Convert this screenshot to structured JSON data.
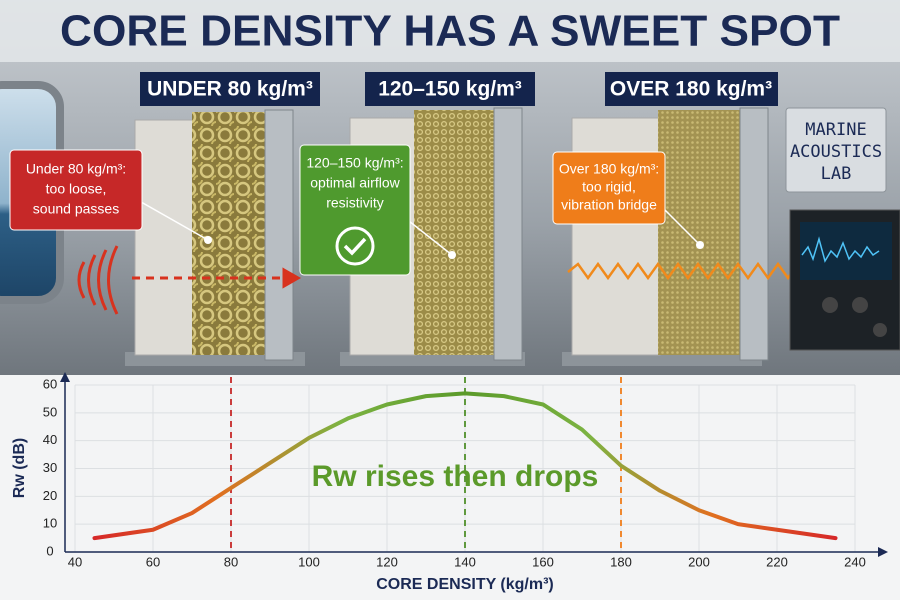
{
  "header": {
    "title": "CORE DENSITY HAS A SWEET SPOT"
  },
  "panels": [
    {
      "label": "UNDER 80 kg/m³",
      "callout": [
        "Under 80 kg/m³:",
        "too loose,",
        "sound passes"
      ]
    },
    {
      "label": "120–150 kg/m³",
      "callout": [
        "120–150 kg/m³:",
        "optimal airflow",
        "resistivity"
      ]
    },
    {
      "label": "OVER 180 kg/m³",
      "callout": [
        "Over 180 kg/m³:",
        "too rigid,",
        "vibration bridge"
      ]
    }
  ],
  "sign": [
    "MARINE",
    "ACOUSTICS",
    "LAB"
  ],
  "chart_data": {
    "type": "line",
    "x_label": "CORE DENSITY (kg/m³)",
    "y_label": "Rw (dB)",
    "annotation": "Rw rises then drops",
    "x": [
      45,
      60,
      70,
      80,
      90,
      100,
      110,
      120,
      130,
      140,
      150,
      160,
      170,
      180,
      190,
      200,
      210,
      220,
      235
    ],
    "values": [
      5,
      8,
      14,
      23,
      32,
      41,
      48,
      53,
      56,
      57,
      56,
      53,
      44,
      31,
      22,
      15,
      10,
      8,
      5
    ],
    "colors": [
      "#d62828",
      "#e07020",
      "#7cb342",
      "#5b9a2a",
      "#7cb342",
      "#e07020",
      "#d62828"
    ],
    "markers": [
      {
        "x": 80,
        "color": "#c62828"
      },
      {
        "x": 140,
        "color": "#4f8f2a"
      },
      {
        "x": 180,
        "color": "#ef7d1a"
      }
    ],
    "xlim": [
      40,
      240
    ],
    "ylim": [
      0,
      60
    ],
    "xticks": [
      40,
      60,
      80,
      100,
      120,
      140,
      160,
      180,
      200,
      220,
      240
    ],
    "yticks": [
      0,
      10,
      20,
      30,
      40,
      50,
      60
    ],
    "grid": true
  }
}
